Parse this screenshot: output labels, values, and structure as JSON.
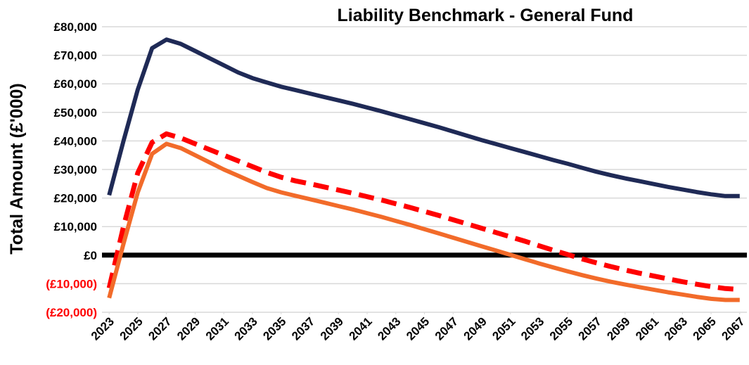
{
  "chart_data": {
    "type": "line",
    "title": "Liability Benchmark - General Fund",
    "y_label": "Total Amount (£'000)",
    "x": [
      2023,
      2024,
      2025,
      2026,
      2027,
      2028,
      2029,
      2030,
      2031,
      2032,
      2033,
      2034,
      2035,
      2036,
      2037,
      2038,
      2039,
      2040,
      2041,
      2042,
      2043,
      2044,
      2045,
      2046,
      2047,
      2048,
      2049,
      2050,
      2051,
      2052,
      2053,
      2054,
      2055,
      2056,
      2057,
      2058,
      2059,
      2060,
      2061,
      2062,
      2063,
      2064,
      2065,
      2066,
      2067
    ],
    "xlim": [
      2022.5,
      2067.5
    ],
    "xticks": [
      2023,
      2025,
      2027,
      2029,
      2031,
      2033,
      2035,
      2037,
      2039,
      2041,
      2043,
      2045,
      2047,
      2049,
      2051,
      2053,
      2055,
      2057,
      2059,
      2061,
      2063,
      2065,
      2067
    ],
    "ylim": [
      -20000,
      80000
    ],
    "yticks": [
      {
        "value": -20000,
        "label": "(£20,000)"
      },
      {
        "value": -10000,
        "label": "(£10,000)"
      },
      {
        "value": 0,
        "label": "£0"
      },
      {
        "value": 10000,
        "label": "£10,000"
      },
      {
        "value": 20000,
        "label": "£20,000"
      },
      {
        "value": 30000,
        "label": "£30,000"
      },
      {
        "value": 40000,
        "label": "£40,000"
      },
      {
        "value": 50000,
        "label": "£50,000"
      },
      {
        "value": 60000,
        "label": "£60,000"
      },
      {
        "value": 70000,
        "label": "£70,000"
      },
      {
        "value": 80000,
        "label": "£80,000"
      }
    ],
    "grid": true,
    "negative_tick_color": "#ff0000",
    "reference_line": {
      "value": 0,
      "color": "#000000"
    },
    "series": [
      {
        "color": "#1f2a56",
        "dashed": false,
        "values": [
          21000,
          40000,
          58000,
          72500,
          75500,
          74000,
          71500,
          69000,
          66500,
          64000,
          62000,
          60500,
          59000,
          57800,
          56600,
          55400,
          54200,
          53000,
          51700,
          50400,
          49000,
          47600,
          46200,
          44800,
          43300,
          41800,
          40300,
          38900,
          37500,
          36100,
          34700,
          33300,
          32000,
          30600,
          29200,
          28000,
          26900,
          25900,
          24900,
          23900,
          23000,
          22100,
          21300,
          20700,
          20700
        ]
      },
      {
        "color": "#ff0000",
        "dashed": true,
        "values": [
          -11500,
          10000,
          28800,
          39500,
          42500,
          41000,
          39000,
          37000,
          35000,
          33000,
          31000,
          29000,
          27300,
          26000,
          25000,
          23900,
          22800,
          21700,
          20500,
          19300,
          18000,
          16700,
          15300,
          13900,
          12400,
          10900,
          9400,
          7900,
          6400,
          4900,
          3300,
          1700,
          200,
          -1300,
          -2700,
          -4000,
          -5200,
          -6300,
          -7300,
          -8300,
          -9300,
          -10200,
          -11000,
          -11700,
          -12000
        ]
      },
      {
        "color": "#f26b2a",
        "dashed": false,
        "values": [
          -15000,
          4000,
          22000,
          35500,
          39000,
          37500,
          35000,
          32500,
          30000,
          27800,
          25600,
          23500,
          22000,
          20800,
          19600,
          18400,
          17200,
          16000,
          14700,
          13400,
          12000,
          10600,
          9100,
          7600,
          6100,
          4600,
          3100,
          1600,
          100,
          -1400,
          -2900,
          -4300,
          -5700,
          -7000,
          -8200,
          -9300,
          -10300,
          -11200,
          -12100,
          -13000,
          -13800,
          -14600,
          -15300,
          -15700,
          -15700
        ]
      }
    ]
  }
}
